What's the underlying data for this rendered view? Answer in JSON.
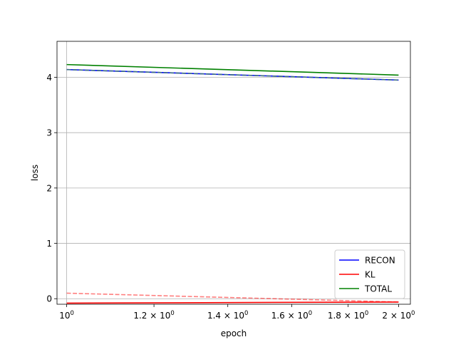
{
  "chart_data": {
    "type": "line",
    "xscale": "log",
    "xlabel": "epoch",
    "ylabel": "loss",
    "xlim": [
      0.98,
      2.05
    ],
    "ylim": [
      -0.1,
      4.65
    ],
    "grid": true,
    "legend_position": "lower-right",
    "x_ticks": [
      {
        "value": 1.0,
        "base": "10",
        "exp": "0"
      },
      {
        "value": 1.2,
        "base": "1.2 × 10",
        "exp": "0"
      },
      {
        "value": 1.4,
        "base": "1.4 × 10",
        "exp": "0"
      },
      {
        "value": 1.6,
        "base": "1.6 × 10",
        "exp": "0"
      },
      {
        "value": 1.8,
        "base": "1.8 × 10",
        "exp": "0"
      },
      {
        "value": 2.0,
        "base": "2 × 10",
        "exp": "0"
      }
    ],
    "y_ticks": [
      0,
      1,
      2,
      3,
      4
    ],
    "x": [
      1,
      2
    ],
    "series": [
      {
        "name": "RECON",
        "color": "#0000ff",
        "style": "solid",
        "values": [
          4.14,
          3.95
        ],
        "opacity": 1
      },
      {
        "name": "KL",
        "color": "#ff0000",
        "style": "solid",
        "values": [
          -0.08,
          -0.06
        ],
        "opacity": 1
      },
      {
        "name": "TOTAL",
        "color": "#008000",
        "style": "solid",
        "values": [
          4.23,
          4.04
        ],
        "opacity": 1
      },
      {
        "name": "",
        "color": "#3a6f80",
        "style": "dashed",
        "values": [
          4.14,
          3.95
        ],
        "opacity": 1
      },
      {
        "name": "",
        "color": "#ff0000",
        "style": "dashed",
        "values": [
          0.1,
          -0.06
        ],
        "opacity": 0.5
      }
    ],
    "legend": [
      "RECON",
      "KL",
      "TOTAL"
    ]
  }
}
